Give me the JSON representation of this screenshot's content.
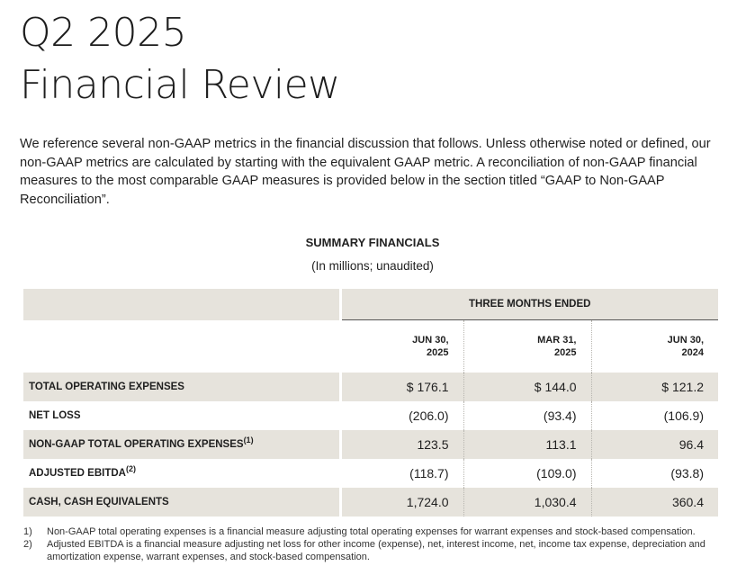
{
  "title": {
    "line1": "Q2 2025",
    "line2": "Financial Review"
  },
  "intro": "We reference several non-GAAP metrics in the financial discussion that follows. Unless otherwise noted or defined, our non-GAAP metrics are calculated by starting with the equivalent GAAP metric. A reconciliation of non-GAAP financial measures to the most comparable GAAP measures is provided below in the section titled “GAAP to Non-GAAP Reconciliation”.",
  "summary": {
    "heading": "SUMMARY FINANCIALS",
    "subheading": "(In millions; unaudited)",
    "period_header": "THREE MONTHS ENDED",
    "columns": [
      {
        "line1": "JUN 30,",
        "line2": "2025"
      },
      {
        "line1": "MAR 31,",
        "line2": "2025"
      },
      {
        "line1": "JUN 30,",
        "line2": "2024"
      }
    ],
    "rows": [
      {
        "label": "TOTAL OPERATING EXPENSES",
        "note": "",
        "values": [
          "$ 176.1",
          "$ 144.0",
          "$ 121.2"
        ]
      },
      {
        "label": "NET LOSS",
        "note": "",
        "values": [
          "(206.0)",
          "(93.4)",
          "(106.9)"
        ]
      },
      {
        "label": "NON-GAAP TOTAL OPERATING EXPENSES",
        "note": "(1)",
        "values": [
          "123.5",
          "113.1",
          "96.4"
        ]
      },
      {
        "label": "ADJUSTED EBITDA",
        "note": "(2)",
        "values": [
          "(118.7)",
          "(109.0)",
          "(93.8)"
        ]
      },
      {
        "label": "CASH, CASH EQUIVALENTS",
        "note": "",
        "values": [
          "1,724.0",
          "1,030.4",
          "360.4"
        ]
      }
    ]
  },
  "footnotes": [
    {
      "num": "1)",
      "text": "Non-GAAP total operating expenses is a financial measure adjusting total operating expenses for warrant expenses and stock-based compensation."
    },
    {
      "num": "2)",
      "text": "Adjusted EBITDA is a financial measure adjusting net loss for other income (expense), net, interest income, net, income tax expense, depreciation and amortization expense, warrant expenses, and stock-based compensation."
    }
  ]
}
